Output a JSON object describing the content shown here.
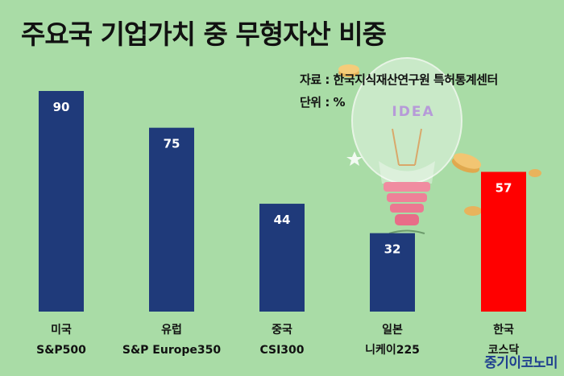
{
  "title": "주요국 기업가치 중 무형자산 비중",
  "source": "자료 : 한국지식재산연구원 특허통계센터",
  "unit": "단위 : %",
  "brand": "중기이코노미",
  "illustration": {
    "bulb_text": "IDEA"
  },
  "colors": {
    "bar_default": "#1f3a7a",
    "bar_highlight": "#ff0000",
    "background": "#a9dca6"
  },
  "chart_data": {
    "type": "bar",
    "categories": [
      {
        "line1": "미국",
        "line2": "S&P500"
      },
      {
        "line1": "유럽",
        "line2": "S&P Europe350"
      },
      {
        "line1": "중국",
        "line2": "CSI300"
      },
      {
        "line1": "일본",
        "line2": "니케이225"
      },
      {
        "line1": "한국",
        "line2": "코스닥"
      }
    ],
    "values": [
      90,
      75,
      44,
      32,
      57
    ],
    "highlight_index": 4,
    "ylim": [
      0,
      100
    ],
    "grid": false,
    "legend": "none"
  }
}
